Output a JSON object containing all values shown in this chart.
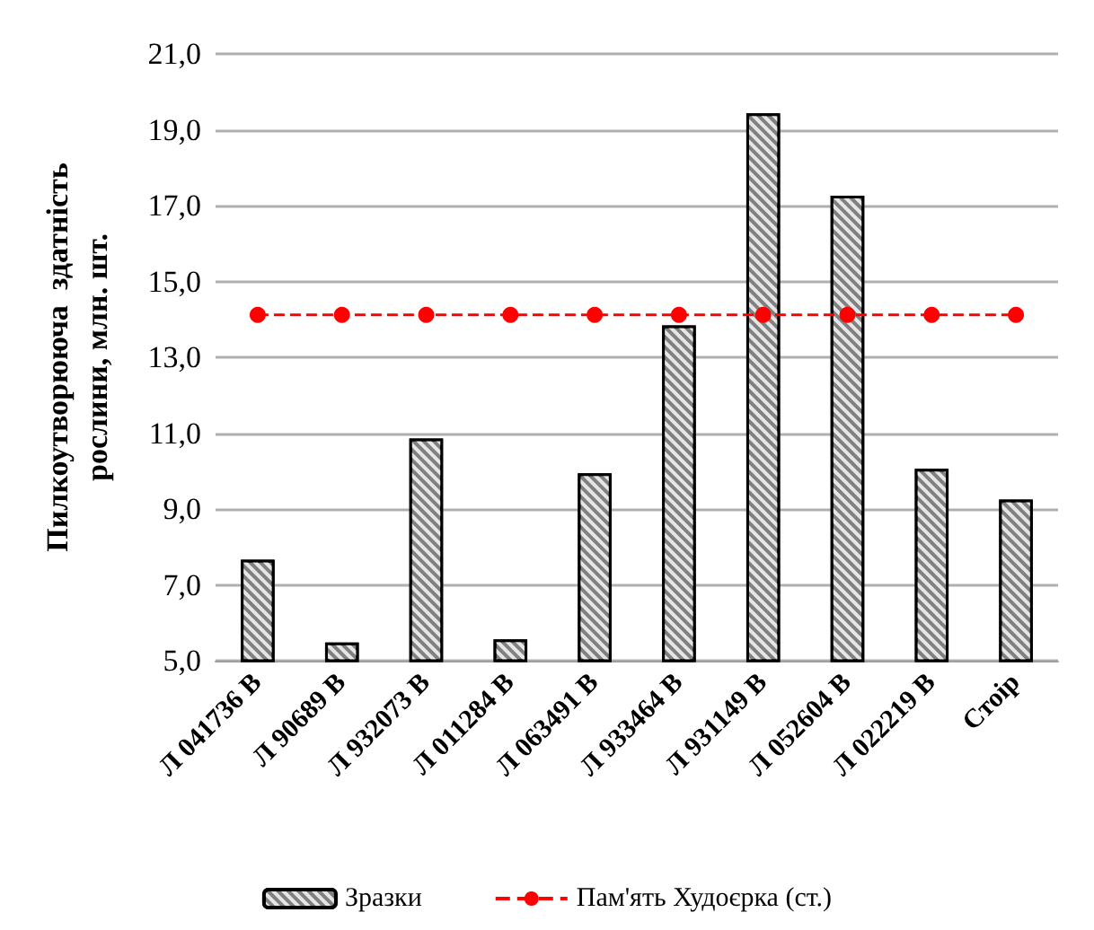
{
  "chart_data": {
    "type": "bar",
    "ylabel": "Пилкоутворююча  здатність\nрослини, млн. шт.",
    "categories": [
      "Л 041736 В",
      "Л 90689 В",
      "Л 932073 В",
      "Л 011284 В",
      "Л 063491 В",
      "Л 933464 В",
      "Л 931149 В",
      "Л 052604 В",
      "Л 022219 В",
      "Стоір"
    ],
    "series": [
      {
        "name": "Зразки",
        "color": "#808080",
        "values": [
          7.66,
          5.48,
          10.86,
          5.56,
          9.94,
          13.84,
          19.43,
          17.26,
          10.06,
          9.25
        ]
      },
      {
        "name": "Пам'ять Худоєрка (ст.)",
        "type": "line",
        "color": "#ff0000",
        "marker": "circle",
        "line_style": "dashed",
        "values": [
          14.12,
          14.12,
          14.12,
          14.12,
          14.12,
          14.12,
          14.12,
          14.12,
          14.12,
          14.12
        ]
      }
    ],
    "ylim": [
      5,
      21
    ],
    "yticks": [
      {
        "value": 5,
        "label": "5,0"
      },
      {
        "value": 7,
        "label": "7,0"
      },
      {
        "value": 9,
        "label": "9,0"
      },
      {
        "value": 11,
        "label": "11,0"
      },
      {
        "value": 13,
        "label": "13,0"
      },
      {
        "value": 15,
        "label": "15,0"
      },
      {
        "value": 17,
        "label": "17,0"
      },
      {
        "value": 19,
        "label": "19,0"
      },
      {
        "value": 21,
        "label": "21,0"
      }
    ],
    "grid": "y",
    "legend": "bottom"
  }
}
